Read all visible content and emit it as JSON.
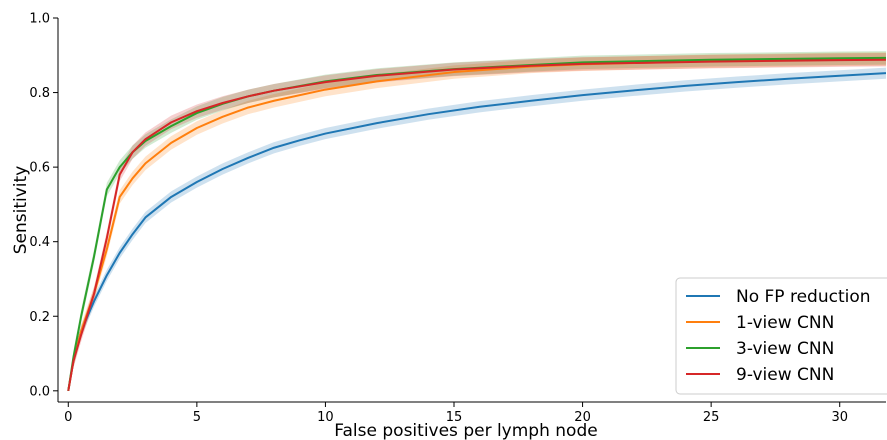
{
  "chart_data": {
    "type": "line",
    "title": "",
    "xlabel": "False positives per lymph node",
    "ylabel": "Sensitivity",
    "xlim": [
      -0.4,
      31.8
    ],
    "ylim": [
      -0.03,
      1.0
    ],
    "x_ticks": [
      0,
      5,
      10,
      15,
      20,
      25,
      30
    ],
    "y_ticks": [
      0.0,
      0.2,
      0.4,
      0.6,
      0.8,
      1.0
    ],
    "x_tick_labels": [
      "0",
      "5",
      "10",
      "15",
      "20",
      "25",
      "30"
    ],
    "y_tick_labels": [
      "0.0",
      "0.2",
      "0.4",
      "0.6",
      "0.8",
      "1.0"
    ],
    "grid": false,
    "legend_position": "bottom-right",
    "series": [
      {
        "name": "No FP reduction",
        "color": "#1f77b4",
        "band": 0.015,
        "x": [
          0,
          0.2,
          0.5,
          1,
          1.5,
          2,
          2.5,
          3,
          4,
          5,
          6,
          7,
          8,
          9,
          10,
          12,
          14,
          16,
          18,
          20,
          22,
          24,
          26,
          28,
          30,
          31.8
        ],
        "y": [
          0.0,
          0.08,
          0.16,
          0.24,
          0.31,
          0.37,
          0.42,
          0.465,
          0.52,
          0.56,
          0.595,
          0.625,
          0.652,
          0.672,
          0.69,
          0.718,
          0.742,
          0.762,
          0.778,
          0.793,
          0.806,
          0.818,
          0.828,
          0.837,
          0.845,
          0.852
        ]
      },
      {
        "name": "1-view CNN",
        "color": "#ff7f0e",
        "band": 0.018,
        "x": [
          0,
          0.2,
          0.5,
          1,
          1.5,
          2,
          2.5,
          3,
          4,
          5,
          6,
          7,
          8,
          10,
          12,
          15,
          18,
          20,
          25,
          30,
          31.8
        ],
        "y": [
          0.0,
          0.08,
          0.16,
          0.26,
          0.38,
          0.52,
          0.57,
          0.61,
          0.665,
          0.705,
          0.735,
          0.76,
          0.778,
          0.808,
          0.83,
          0.855,
          0.87,
          0.876,
          0.884,
          0.889,
          0.89
        ]
      },
      {
        "name": "3-view CNN",
        "color": "#2ca02c",
        "band": 0.018,
        "x": [
          0,
          0.2,
          0.5,
          1,
          1.5,
          2,
          2.5,
          3,
          4,
          5,
          6,
          7,
          8,
          10,
          12,
          15,
          18,
          20,
          25,
          30,
          31.8
        ],
        "y": [
          0.0,
          0.09,
          0.2,
          0.36,
          0.54,
          0.6,
          0.64,
          0.67,
          0.71,
          0.745,
          0.77,
          0.79,
          0.805,
          0.83,
          0.847,
          0.863,
          0.874,
          0.881,
          0.888,
          0.892,
          0.893
        ]
      },
      {
        "name": "9-view CNN",
        "color": "#d62728",
        "band": 0.018,
        "x": [
          0,
          0.2,
          0.5,
          1,
          1.5,
          2,
          2.5,
          3,
          4,
          5,
          6,
          7,
          8,
          10,
          12,
          15,
          18,
          20,
          25,
          30,
          31.8
        ],
        "y": [
          0.0,
          0.08,
          0.15,
          0.26,
          0.41,
          0.58,
          0.64,
          0.675,
          0.72,
          0.75,
          0.772,
          0.79,
          0.805,
          0.828,
          0.845,
          0.862,
          0.872,
          0.877,
          0.883,
          0.887,
          0.888
        ]
      }
    ]
  }
}
